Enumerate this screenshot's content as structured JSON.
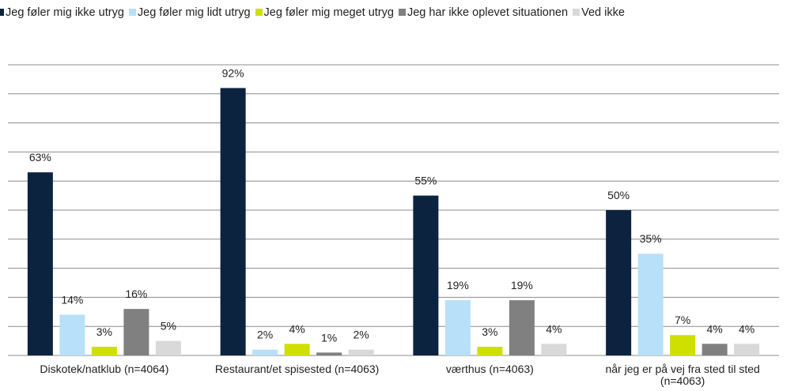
{
  "chart_data": {
    "type": "bar",
    "categories": [
      "Diskotek/natklub (n=4064)",
      "Restaurant/et spisested (n=4063)",
      "værthus (n=4063)",
      "når jeg er på vej fra sted til sted (n=4063)"
    ],
    "series": [
      {
        "name": "Jeg føler mig ikke utryg",
        "color": "#0c2340",
        "values": [
          63,
          92,
          55,
          50
        ],
        "value_labels": [
          "63%",
          "92%",
          "55%",
          "50%"
        ]
      },
      {
        "name": "Jeg føler mig lidt utryg",
        "color": "#b8e0f8",
        "values": [
          14,
          2,
          19,
          35
        ],
        "value_labels": [
          "14%",
          "2%",
          "19%",
          "35%"
        ]
      },
      {
        "name": "Jeg føler mig meget utryg",
        "color": "#cfe000",
        "values": [
          3,
          4,
          3,
          7
        ],
        "value_labels": [
          "3%",
          "4%",
          "3%",
          "7%"
        ]
      },
      {
        "name": "Jeg har ikke oplevet situationen",
        "color": "#808080",
        "values": [
          16,
          1,
          19,
          4
        ],
        "value_labels": [
          "16%",
          "1%",
          "19%",
          "4%"
        ]
      },
      {
        "name": "Ved ikke",
        "color": "#d9d9d9",
        "values": [
          5,
          2,
          4,
          4
        ],
        "value_labels": [
          "5%",
          "2%",
          "4%",
          "4%"
        ]
      }
    ],
    "ylim": [
      0,
      100
    ],
    "yticks": [
      0,
      10,
      20,
      30,
      40,
      50,
      60,
      70,
      80,
      90,
      100
    ],
    "grid": true
  }
}
